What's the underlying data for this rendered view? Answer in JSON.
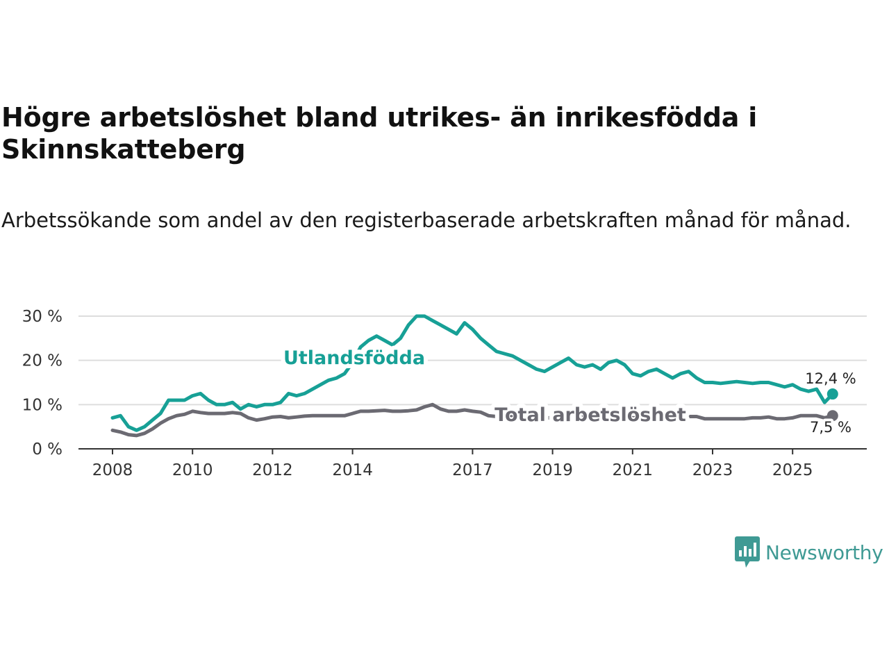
{
  "title": "Högre arbetslöshet bland utrikes- än inrikesfödda i Skinnskatteberg",
  "subtitle": "Arbetssökande som andel av den registerbaserade arbetskraften månad för månad.",
  "brand": {
    "name": "Newsworthy",
    "icon": "newsworthy-logo-icon",
    "color": "#3f9a94"
  },
  "chart_data": {
    "type": "line",
    "title": "Högre arbetslöshet bland utrikes- än inrikesfödda i Skinnskatteberg",
    "xlabel": "",
    "ylabel": "",
    "xlim": [
      2008,
      2026.2
    ],
    "ylim": [
      0,
      30
    ],
    "grid": true,
    "y_ticks": [
      0,
      10,
      20,
      30
    ],
    "y_tick_labels": [
      "0 %",
      "10 %",
      "20 %",
      "30 %"
    ],
    "x_ticks": [
      2008,
      2010,
      2012,
      2014,
      2017,
      2019,
      2021,
      2023,
      2025
    ],
    "x_tick_labels": [
      "2008",
      "2010",
      "2012",
      "2014",
      "2017",
      "2019",
      "2021",
      "2023",
      "2025"
    ],
    "series": [
      {
        "name": "Utlandsfödda",
        "color": "#17a096",
        "end_label": "12,4 %",
        "x": [
          2008.0,
          2008.2,
          2008.4,
          2008.6,
          2008.8,
          2009.0,
          2009.2,
          2009.4,
          2009.6,
          2009.8,
          2010.0,
          2010.2,
          2010.4,
          2010.6,
          2010.8,
          2011.0,
          2011.2,
          2011.4,
          2011.6,
          2011.8,
          2012.0,
          2012.2,
          2012.4,
          2012.6,
          2012.8,
          2013.0,
          2013.2,
          2013.4,
          2013.6,
          2013.8,
          2014.0,
          2014.2,
          2014.4,
          2014.6,
          2014.8,
          2015.0,
          2015.2,
          2015.4,
          2015.6,
          2015.8,
          2016.0,
          2016.2,
          2016.4,
          2016.6,
          2016.8,
          2017.0,
          2017.2,
          2017.4,
          2017.6,
          2017.8,
          2018.0,
          2018.2,
          2018.4,
          2018.6,
          2018.8,
          2019.0,
          2019.2,
          2019.4,
          2019.6,
          2019.8,
          2020.0,
          2020.2,
          2020.4,
          2020.6,
          2020.8,
          2021.0,
          2021.2,
          2021.4,
          2021.6,
          2021.8,
          2022.0,
          2022.2,
          2022.4,
          2022.6,
          2022.8,
          2023.0,
          2023.2,
          2023.4,
          2023.6,
          2023.8,
          2024.0,
          2024.2,
          2024.4,
          2024.6,
          2024.8,
          2025.0,
          2025.2,
          2025.4,
          2025.6,
          2025.8,
          2026.0
        ],
        "values": [
          7.0,
          7.5,
          5.0,
          4.2,
          5.0,
          6.5,
          8.0,
          11.0,
          11.0,
          11.0,
          12.0,
          12.5,
          11.0,
          10.0,
          10.0,
          10.5,
          9.0,
          10.0,
          9.5,
          10.0,
          10.0,
          10.5,
          12.5,
          12.0,
          12.5,
          13.5,
          14.5,
          15.5,
          16.0,
          17.0,
          19.5,
          23.0,
          24.5,
          25.5,
          24.5,
          23.5,
          25.0,
          28.0,
          30.0,
          30.0,
          29.0,
          28.0,
          27.0,
          26.0,
          28.5,
          27.0,
          25.0,
          23.5,
          22.0,
          21.5,
          21.0,
          20.0,
          19.0,
          18.0,
          17.5,
          18.5,
          19.5,
          20.5,
          19.0,
          18.5,
          19.0,
          18.0,
          19.5,
          20.0,
          19.0,
          17.0,
          16.5,
          17.5,
          18.0,
          17.0,
          16.0,
          17.0,
          17.5,
          16.0,
          15.0,
          15.0,
          14.8,
          15.0,
          15.2,
          15.0,
          14.8,
          15.0,
          15.0,
          14.5,
          14.0,
          14.5,
          13.5,
          13.0,
          13.5,
          10.5,
          12.4
        ]
      },
      {
        "name": "Total arbetslöshet",
        "color": "#6b6a72",
        "end_label": "7,5 %",
        "x": [
          2008.0,
          2008.2,
          2008.4,
          2008.6,
          2008.8,
          2009.0,
          2009.2,
          2009.4,
          2009.6,
          2009.8,
          2010.0,
          2010.2,
          2010.4,
          2010.6,
          2010.8,
          2011.0,
          2011.2,
          2011.4,
          2011.6,
          2011.8,
          2012.0,
          2012.2,
          2012.4,
          2012.6,
          2012.8,
          2013.0,
          2013.2,
          2013.4,
          2013.6,
          2013.8,
          2014.0,
          2014.2,
          2014.4,
          2014.6,
          2014.8,
          2015.0,
          2015.2,
          2015.4,
          2015.6,
          2015.8,
          2016.0,
          2016.2,
          2016.4,
          2016.6,
          2016.8,
          2017.0,
          2017.2,
          2017.4,
          2017.6,
          2017.8,
          2018.0,
          2018.2,
          2018.4,
          2018.6,
          2018.8,
          2019.0,
          2019.2,
          2019.4,
          2019.6,
          2019.8,
          2020.0,
          2020.2,
          2020.4,
          2020.6,
          2020.8,
          2021.0,
          2021.2,
          2021.4,
          2021.6,
          2021.8,
          2022.0,
          2022.2,
          2022.4,
          2022.6,
          2022.8,
          2023.0,
          2023.2,
          2023.4,
          2023.6,
          2023.8,
          2024.0,
          2024.2,
          2024.4,
          2024.6,
          2024.8,
          2025.0,
          2025.2,
          2025.4,
          2025.6,
          2025.8,
          2026.0
        ],
        "values": [
          4.2,
          3.8,
          3.2,
          3.0,
          3.5,
          4.5,
          5.8,
          6.8,
          7.5,
          7.8,
          8.5,
          8.2,
          8.0,
          8.0,
          8.0,
          8.2,
          8.0,
          7.0,
          6.5,
          6.8,
          7.2,
          7.3,
          7.0,
          7.2,
          7.4,
          7.5,
          7.5,
          7.5,
          7.5,
          7.5,
          8.0,
          8.5,
          8.5,
          8.6,
          8.7,
          8.5,
          8.5,
          8.6,
          8.8,
          9.5,
          10.0,
          9.0,
          8.5,
          8.5,
          8.8,
          8.5,
          8.3,
          7.5,
          7.3,
          7.3,
          7.3,
          7.2,
          7.2,
          7.2,
          7.0,
          7.0,
          7.2,
          7.3,
          7.3,
          7.3,
          7.2,
          7.2,
          7.3,
          7.3,
          7.2,
          7.0,
          7.0,
          7.2,
          7.2,
          7.2,
          7.3,
          7.3,
          7.3,
          7.3,
          6.8,
          6.8,
          6.8,
          6.8,
          6.8,
          6.8,
          7.0,
          7.0,
          7.2,
          6.8,
          6.8,
          7.0,
          7.5,
          7.5,
          7.5,
          7.0,
          7.5
        ]
      }
    ]
  }
}
